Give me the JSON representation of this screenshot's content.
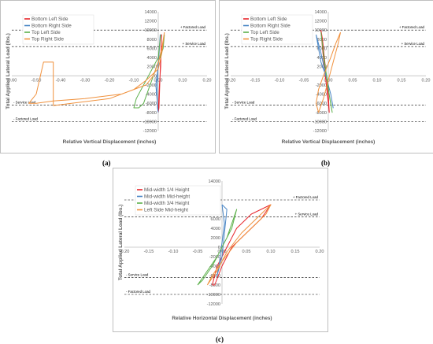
{
  "chart_data": [
    {
      "type": "line",
      "caption": "(a)",
      "xlabel": "Relative Vertical Displacement (inches)",
      "ylabel": "Total Applied Lateral Load (lbs.)",
      "xlim": [
        -0.6,
        0.2
      ],
      "ylim": [
        -12000,
        14000
      ],
      "xticks": [
        "-0.60",
        "-0.50",
        "-0.40",
        "-0.30",
        "-0.20",
        "-0.10",
        "0.00",
        "0.10",
        "0.20"
      ],
      "xtick_values": [
        -0.6,
        -0.5,
        -0.4,
        -0.3,
        -0.2,
        -0.1,
        0.0,
        0.1,
        0.2
      ],
      "yticks": [
        "-12000",
        "-10000",
        "-8000",
        "-6000",
        "-4000",
        "-2000",
        "0",
        "2000",
        "4000",
        "6000",
        "8000",
        "10000",
        "12000",
        "14000"
      ],
      "ytick_values": [
        -12000,
        -10000,
        -8000,
        -6000,
        -4000,
        -2000,
        0,
        2000,
        4000,
        6000,
        8000,
        10000,
        12000,
        14000
      ],
      "legend_position": "top-left",
      "grid": false,
      "reference_lines": [
        {
          "label": "+ Factored Load",
          "y": 10000,
          "anchor": "right"
        },
        {
          "label": "+ Service Load",
          "y": 6400,
          "anchor": "right"
        },
        {
          "label": "- Service Load",
          "y": -6400,
          "anchor": "left"
        },
        {
          "label": "- Factored Load",
          "y": -10000,
          "anchor": "left"
        }
      ],
      "series": [
        {
          "name": "Bottom Left Side",
          "color": "#e8262c",
          "points": [
            [
              0.0,
              -8000
            ],
            [
              0.005,
              -2000
            ],
            [
              0.01,
              2000
            ],
            [
              0.012,
              6000
            ],
            [
              0.014,
              9000
            ],
            [
              0.01,
              4000
            ],
            [
              0.006,
              -2000
            ],
            [
              0.003,
              -7000
            ],
            [
              0.0,
              -8000
            ]
          ]
        },
        {
          "name": "Bottom Right Side",
          "color": "#4a86c5",
          "points": [
            [
              0.0,
              -8000
            ],
            [
              -0.01,
              -2000
            ],
            [
              0.0,
              2000
            ],
            [
              0.005,
              6000
            ],
            [
              0.008,
              9000
            ],
            [
              0.0,
              3000
            ],
            [
              -0.005,
              -3000
            ],
            [
              -0.003,
              -7000
            ],
            [
              0.0,
              -8000
            ]
          ]
        },
        {
          "name": "Top Left Side",
          "color": "#5cb04a",
          "points": [
            [
              0.01,
              9000
            ],
            [
              0.0,
              4000
            ],
            [
              -0.04,
              0
            ],
            [
              -0.07,
              -3000
            ],
            [
              -0.09,
              -5000
            ],
            [
              -0.1,
              -7000
            ],
            [
              -0.08,
              -7000
            ],
            [
              -0.06,
              -6000
            ],
            [
              -0.04,
              -3000
            ],
            [
              -0.02,
              0
            ],
            [
              0.0,
              3000
            ],
            [
              0.02,
              6000
            ],
            [
              0.025,
              9000
            ]
          ]
        },
        {
          "name": "Top Right Side",
          "color": "#f0913d",
          "points": [
            [
              0.025,
              9500
            ],
            [
              0.015,
              6000
            ],
            [
              0.0,
              3000
            ],
            [
              -0.02,
              0
            ],
            [
              -0.05,
              -2000
            ],
            [
              -0.15,
              -4000
            ],
            [
              -0.3,
              -5000
            ],
            [
              -0.43,
              -5500
            ],
            [
              -0.5,
              -6000
            ],
            [
              -0.53,
              -6000
            ],
            [
              -0.5,
              -4000
            ],
            [
              -0.47,
              3000
            ],
            [
              -0.43,
              3000
            ],
            [
              -0.43,
              -6500
            ],
            [
              -0.2,
              -5000
            ],
            [
              -0.1,
              -3000
            ],
            [
              -0.05,
              -1000
            ],
            [
              0.0,
              1500
            ],
            [
              0.015,
              5000
            ],
            [
              0.025,
              9500
            ]
          ]
        }
      ]
    },
    {
      "type": "line",
      "caption": "(b)",
      "xlabel": "Relative Vertical Displacement (inches)",
      "ylabel": "Total Applied Lateral Load (lbs.)",
      "xlim": [
        -0.2,
        0.2
      ],
      "ylim": [
        -12000,
        14000
      ],
      "xticks": [
        "-0.20",
        "-0.15",
        "-0.10",
        "-0.05",
        "0.00",
        "0.05",
        "0.10",
        "0.15",
        "0.20"
      ],
      "xtick_values": [
        -0.2,
        -0.15,
        -0.1,
        -0.05,
        0.0,
        0.05,
        0.1,
        0.15,
        0.2
      ],
      "yticks": [
        "-12000",
        "-10000",
        "-8000",
        "-6000",
        "-4000",
        "-2000",
        "0",
        "2000",
        "4000",
        "6000",
        "8000",
        "10000",
        "12000",
        "14000"
      ],
      "ytick_values": [
        -12000,
        -10000,
        -8000,
        -6000,
        -4000,
        -2000,
        0,
        2000,
        4000,
        6000,
        8000,
        10000,
        12000,
        14000
      ],
      "legend_position": "top-left",
      "grid": false,
      "reference_lines": [
        {
          "label": "+ Factored Load",
          "y": 10000,
          "anchor": "right"
        },
        {
          "label": "+ Service Load",
          "y": 6400,
          "anchor": "right"
        },
        {
          "label": "- Service Load",
          "y": -6400,
          "anchor": "left"
        },
        {
          "label": "- Factored Load",
          "y": -10000,
          "anchor": "left"
        }
      ],
      "series": [
        {
          "name": "Bottom Left Side",
          "color": "#e8262c",
          "points": [
            [
              -0.015,
              10000
            ],
            [
              -0.012,
              6000
            ],
            [
              -0.008,
              2000
            ],
            [
              -0.004,
              -2000
            ],
            [
              0.0,
              -6000
            ],
            [
              0.002,
              -8000
            ],
            [
              0.0,
              -4000
            ],
            [
              -0.004,
              0
            ],
            [
              -0.008,
              4000
            ],
            [
              -0.012,
              8000
            ],
            [
              -0.015,
              10000
            ]
          ]
        },
        {
          "name": "Bottom Right Side",
          "color": "#4a86c5",
          "points": [
            [
              -0.025,
              9000
            ],
            [
              -0.02,
              6000
            ],
            [
              -0.015,
              3000
            ],
            [
              -0.005,
              0
            ],
            [
              0.005,
              -4000
            ],
            [
              0.01,
              -7000
            ],
            [
              0.005,
              -4000
            ],
            [
              -0.005,
              0
            ],
            [
              -0.015,
              5000
            ],
            [
              -0.025,
              9000
            ]
          ]
        },
        {
          "name": "Top Left Side",
          "color": "#5cb04a",
          "points": [
            [
              -0.015,
              9500
            ],
            [
              -0.01,
              5000
            ],
            [
              -0.005,
              1000
            ],
            [
              0.0,
              -3000
            ],
            [
              0.005,
              -6000
            ],
            [
              0.008,
              -8000
            ],
            [
              0.003,
              -5000
            ],
            [
              -0.002,
              -1000
            ],
            [
              -0.008,
              3000
            ],
            [
              -0.015,
              9500
            ]
          ]
        },
        {
          "name": "Top Right Side",
          "color": "#f0913d",
          "points": [
            [
              0.025,
              9500
            ],
            [
              0.015,
              7000
            ],
            [
              0.005,
              4000
            ],
            [
              -0.01,
              0
            ],
            [
              -0.02,
              -3000
            ],
            [
              -0.025,
              -6000
            ],
            [
              -0.02,
              -8000
            ],
            [
              -0.01,
              -5000
            ],
            [
              0.0,
              -1000
            ],
            [
              0.01,
              3000
            ],
            [
              0.02,
              7000
            ],
            [
              0.025,
              9500
            ]
          ]
        }
      ]
    },
    {
      "type": "line",
      "caption": "(c)",
      "xlabel": "Relative Horizontal Displacement (inches)",
      "ylabel": "Total Applied Lateral Load (lbs.)",
      "xlim": [
        -0.2,
        0.2
      ],
      "ylim": [
        -12000,
        14000
      ],
      "xticks": [
        "-0.20",
        "-0.15",
        "-0.10",
        "-0.05",
        "0.00",
        "0.05",
        "0.10",
        "0.15",
        "0.20"
      ],
      "xtick_values": [
        -0.2,
        -0.15,
        -0.1,
        -0.05,
        0.0,
        0.05,
        0.1,
        0.15,
        0.2
      ],
      "yticks": [
        "-12000",
        "-10000",
        "-8000",
        "-6000",
        "-4000",
        "-2000",
        "0",
        "2000",
        "4000",
        "6000",
        "8000",
        "10000",
        "12000",
        "14000"
      ],
      "ytick_values": [
        -12000,
        -10000,
        -8000,
        -6000,
        -4000,
        -2000,
        0,
        2000,
        4000,
        6000,
        8000,
        10000,
        12000,
        14000
      ],
      "legend_position": "top-left",
      "grid": false,
      "reference_lines": [
        {
          "label": "+ Factored Load",
          "y": 10000,
          "anchor": "right"
        },
        {
          "label": "+ Service Load",
          "y": 6400,
          "anchor": "right"
        },
        {
          "label": "- Service Load",
          "y": -6400,
          "anchor": "left"
        },
        {
          "label": "- Factored Load",
          "y": -10000,
          "anchor": "left"
        }
      ],
      "series": [
        {
          "name": "Mid-width 1/4 Height",
          "color": "#e8262c",
          "points": [
            [
              -0.02,
              -8000
            ],
            [
              -0.01,
              -4000
            ],
            [
              0.01,
              0
            ],
            [
              0.03,
              4000
            ],
            [
              0.06,
              7000
            ],
            [
              0.08,
              8000
            ],
            [
              0.1,
              9000
            ],
            [
              0.08,
              6000
            ],
            [
              0.05,
              3000
            ],
            [
              0.02,
              0
            ],
            [
              0.0,
              -4000
            ],
            [
              -0.015,
              -8000
            ],
            [
              -0.02,
              -8000
            ]
          ]
        },
        {
          "name": "Mid-width Mid-height",
          "color": "#4a86c5",
          "points": [
            [
              0.0,
              9000
            ],
            [
              0.005,
              5000
            ],
            [
              0.0,
              1000
            ],
            [
              -0.005,
              -3000
            ],
            [
              -0.01,
              -6000
            ],
            [
              0.0,
              -2000
            ],
            [
              0.005,
              3000
            ],
            [
              0.01,
              8000
            ],
            [
              0.0,
              9000
            ]
          ]
        },
        {
          "name": "Mid-width 3/4 Height",
          "color": "#5cb04a",
          "points": [
            [
              -0.05,
              -8000
            ],
            [
              -0.03,
              -5000
            ],
            [
              -0.01,
              -2000
            ],
            [
              0.01,
              2000
            ],
            [
              0.02,
              5000
            ],
            [
              0.03,
              8000
            ],
            [
              0.02,
              4000
            ],
            [
              0.0,
              0
            ],
            [
              -0.02,
              -4000
            ],
            [
              -0.04,
              -7000
            ],
            [
              -0.05,
              -8000
            ]
          ]
        },
        {
          "name": "Left Side Mid-height",
          "color": "#f0913d",
          "points": [
            [
              -0.03,
              -8000
            ],
            [
              -0.01,
              -5000
            ],
            [
              0.01,
              -1000
            ],
            [
              0.04,
              3000
            ],
            [
              0.07,
              6000
            ],
            [
              0.1,
              9000
            ],
            [
              0.09,
              7000
            ],
            [
              0.06,
              4000
            ],
            [
              0.03,
              1000
            ],
            [
              0.0,
              -3000
            ],
            [
              -0.02,
              -6000
            ],
            [
              -0.03,
              -8000
            ]
          ]
        }
      ]
    }
  ]
}
